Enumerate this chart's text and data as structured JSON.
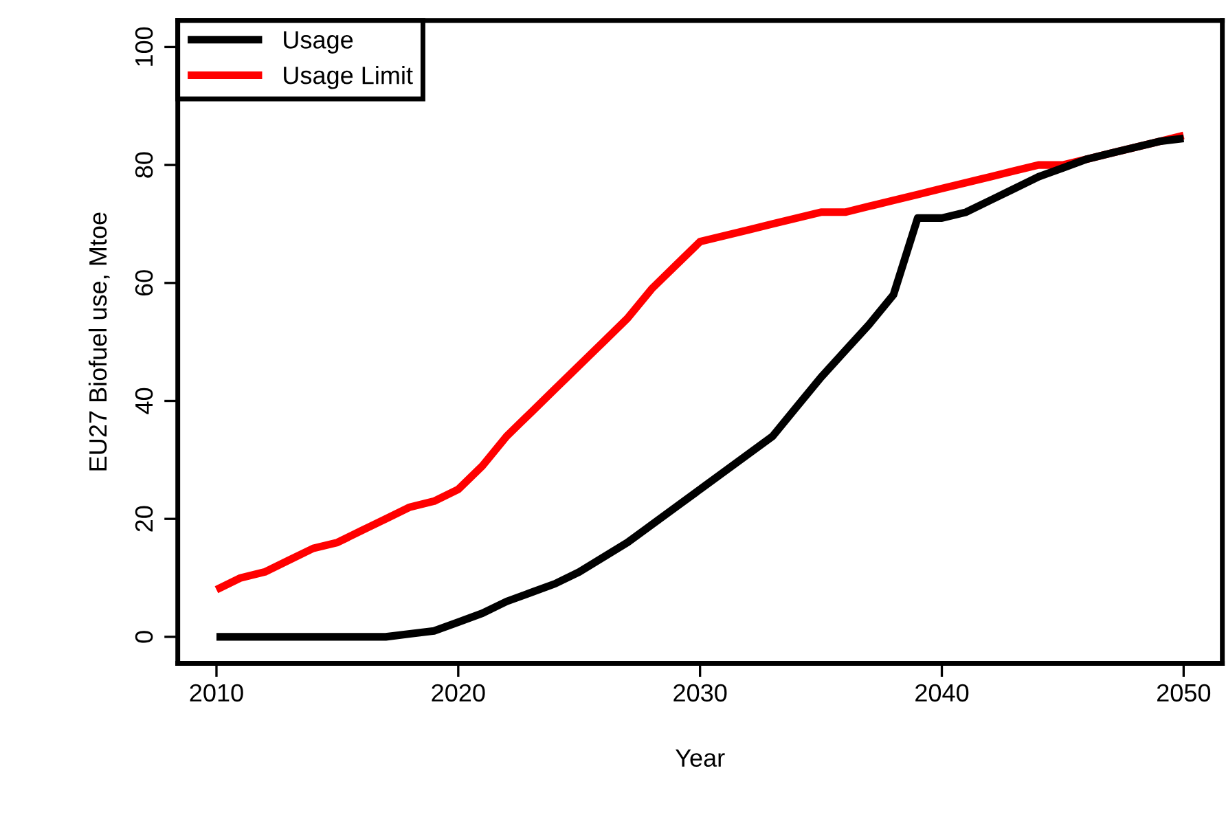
{
  "chart_data": {
    "type": "line",
    "xlabel": "Year",
    "ylabel": "EU27 Biofuel use, Mtoe",
    "x": [
      2010,
      2011,
      2012,
      2013,
      2014,
      2015,
      2016,
      2017,
      2018,
      2019,
      2020,
      2021,
      2022,
      2023,
      2024,
      2025,
      2026,
      2027,
      2028,
      2029,
      2030,
      2031,
      2032,
      2033,
      2034,
      2035,
      2036,
      2037,
      2038,
      2039,
      2040,
      2041,
      2042,
      2043,
      2044,
      2045,
      2046,
      2047,
      2048,
      2049,
      2050
    ],
    "series": [
      {
        "name": "Usage",
        "color": "#000000",
        "values": [
          0,
          0,
          0,
          0,
          0,
          0,
          0,
          0,
          0.5,
          1,
          2.5,
          4,
          6,
          7.5,
          9,
          11,
          13.5,
          16,
          19,
          22,
          25,
          28,
          31,
          34,
          39,
          44,
          48.5,
          53,
          58,
          71,
          71,
          72,
          74,
          76,
          78,
          79.5,
          81,
          82,
          83,
          84,
          84.5
        ]
      },
      {
        "name": "Usage Limit",
        "color": "#ff0000",
        "values": [
          8,
          10,
          11,
          13,
          15,
          16,
          18,
          20,
          22,
          23,
          25,
          29,
          34,
          38,
          42,
          46,
          50,
          54,
          59,
          63,
          67,
          68,
          69,
          70,
          71,
          72,
          72,
          73,
          74,
          75,
          76,
          77,
          78,
          79,
          80,
          80,
          81,
          82,
          83,
          84,
          85
        ]
      }
    ],
    "xlim": [
      2008.4,
      2051.6
    ],
    "xticks": [
      2010,
      2020,
      2030,
      2040,
      2050
    ],
    "ylim": [
      -4.5,
      104.5
    ],
    "yticks": [
      0,
      20,
      40,
      60,
      80,
      100
    ],
    "grid": false,
    "legend": "top left",
    "line_style": "solid",
    "marker": "none"
  }
}
